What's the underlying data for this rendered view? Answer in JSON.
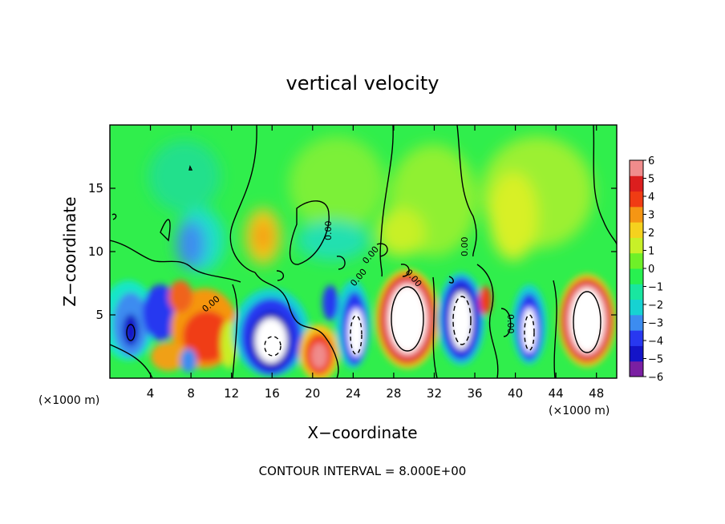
{
  "chart_data": {
    "type": "heatmap",
    "title": "vertical velocity",
    "xlabel": "X−coordinate",
    "ylabel": "Z−coordinate",
    "x_unit_left": "(×1000 m)",
    "x_unit_right": "(×1000 m)",
    "footer": "CONTOUR INTERVAL = 8.000E+00",
    "xlim": [
      0,
      50
    ],
    "ylim": [
      0,
      20
    ],
    "x_ticks": [
      4,
      8,
      12,
      16,
      20,
      24,
      28,
      32,
      36,
      40,
      44,
      48
    ],
    "y_ticks": [
      5,
      10,
      15
    ],
    "colorbar": {
      "range": [
        -6,
        6
      ],
      "ticks": [
        "6",
        "5",
        "4",
        "3",
        "2",
        "1",
        "0",
        "−1",
        "−2",
        "−3",
        "−4",
        "−5",
        "−6"
      ]
    },
    "contour_labels": [
      "0.00",
      "0.00",
      "0.00",
      "0.00",
      "0.00",
      "0.00",
      "0.00"
    ],
    "features": [
      {
        "x": 29.5,
        "z": 4.8,
        "w": 12,
        "kind": "updraft"
      },
      {
        "x": 46.5,
        "z": 4.5,
        "w": 12,
        "kind": "updraft"
      },
      {
        "x": 21.2,
        "z": 2.2,
        "w": 5,
        "kind": "updraft"
      },
      {
        "x": 34.5,
        "z": 4.8,
        "w": -8,
        "kind": "downdraft"
      },
      {
        "x": 16.0,
        "z": 3.2,
        "w": -7,
        "kind": "downdraft"
      },
      {
        "x": 24.8,
        "z": 3.8,
        "w": -6,
        "kind": "downdraft"
      },
      {
        "x": 41.2,
        "z": 3.8,
        "w": -6,
        "kind": "downdraft"
      },
      {
        "x": 2.0,
        "z": 4.2,
        "w": -4,
        "kind": "downdraft"
      },
      {
        "x": 9.0,
        "z": 4.5,
        "w": 4,
        "kind": "updraft"
      },
      {
        "x": 15.5,
        "z": 11.5,
        "w": 2.8,
        "kind": "updraft"
      },
      {
        "x": 7.5,
        "z": 11.0,
        "w": -2.5,
        "kind": "downdraft"
      }
    ]
  },
  "colors": {
    "scale": [
      "#7a1fa2",
      "#1414c8",
      "#2838f0",
      "#3c8cf0",
      "#16d2d2",
      "#19e6a0",
      "#28f050",
      "#6ef028",
      "#c8f028",
      "#f5d21e",
      "#f59614",
      "#f03c14",
      "#dc1e1e",
      "#f08c8c"
    ]
  }
}
